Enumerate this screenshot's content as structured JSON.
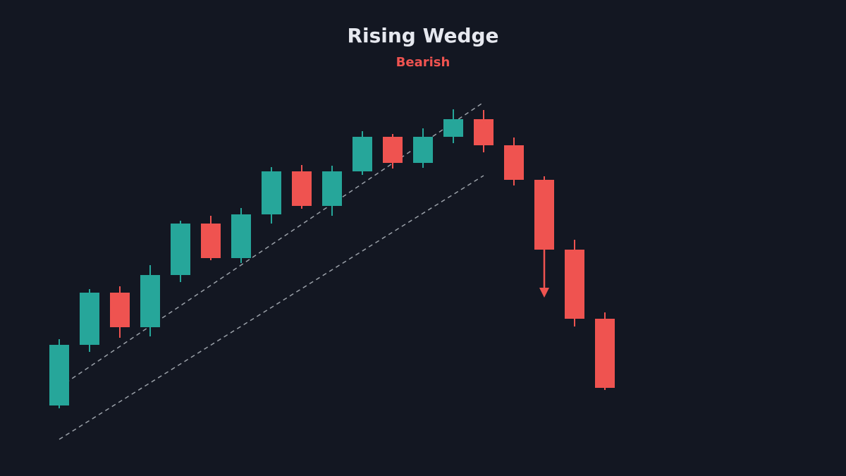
{
  "chart_data": {
    "type": "candlestick",
    "title": "Rising Wedge",
    "subtitle": "Bearish",
    "open": [
      10.0,
      18.6,
      26.0,
      21.1,
      28.5,
      35.8,
      30.9,
      37.1,
      43.2,
      38.3,
      43.2,
      48.1,
      44.4,
      48.1,
      50.6,
      46.9,
      42.0,
      32.1,
      22.3
    ],
    "high": [
      19.4,
      26.5,
      26.9,
      29.9,
      36.2,
      36.9,
      38.0,
      43.8,
      44.1,
      44.0,
      48.9,
      48.5,
      49.3,
      52.0,
      51.9,
      48.0,
      42.5,
      33.5,
      23.2
    ],
    "low": [
      9.6,
      17.6,
      19.6,
      19.8,
      27.5,
      30.6,
      30.2,
      35.8,
      37.9,
      36.9,
      42.7,
      43.6,
      43.7,
      47.2,
      45.9,
      41.2,
      32.1,
      21.2,
      12.2
    ],
    "close": [
      18.6,
      26.0,
      21.1,
      28.5,
      35.8,
      30.9,
      37.1,
      43.2,
      38.3,
      43.2,
      48.1,
      44.4,
      48.1,
      50.6,
      46.9,
      42.0,
      32.1,
      22.3,
      12.5
    ],
    "up_color": "#26a69a",
    "down_color": "#ef5350",
    "ylim": [
      0,
      67.5
    ],
    "trendlines": [
      {
        "x": [
          0,
          14
        ],
        "values": [
          12.6,
          53.0
        ],
        "color": "#9aa0a8"
      },
      {
        "x": [
          0,
          14
        ],
        "values": [
          5.2,
          42.6
        ],
        "color": "#9aa0a8"
      }
    ]
  }
}
